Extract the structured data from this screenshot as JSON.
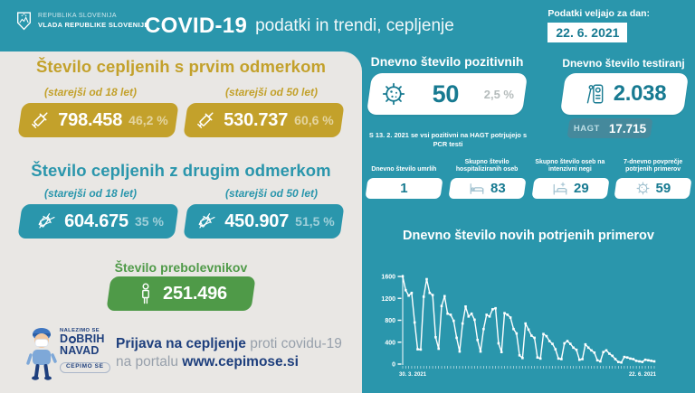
{
  "header": {
    "gov_line1": "REPUBLIKA SLOVENIJA",
    "gov_line2": "VLADA REPUBLIKE SLOVENIJE",
    "title_bold": "COVID-19",
    "title_rest": "podatki in trendi, cepljenje",
    "date_label": "Podatki veljajo za dan:",
    "date_value": "22. 6. 2021"
  },
  "left": {
    "first_dose": {
      "title": "Število cepljenih s prvim odmerkom",
      "groups": [
        {
          "label": "(starejši od 18 let)",
          "value": "798.458",
          "percent": "46,2 %"
        },
        {
          "label": "(starejši od 50 let)",
          "value": "530.737",
          "percent": "60,6 %"
        }
      ]
    },
    "second_dose": {
      "title": "Število cepljenih z drugim odmerkom",
      "groups": [
        {
          "label": "(starejši od 18 let)",
          "value": "604.675",
          "percent": "35 %"
        },
        {
          "label": "(starejši od 50 let)",
          "value": "450.907",
          "percent": "51,5 %"
        }
      ]
    },
    "recovered": {
      "title": "Število prebolevnikov",
      "value": "251.496"
    },
    "campaign": {
      "logo_line1": "NALEZIMO SE",
      "logo_line2_a": "D",
      "logo_line2_b": "BRIH",
      "logo_line3": "NAVAD",
      "badge": "CEPIMO SE",
      "cta_bold1": "Prijava na cepljenje",
      "cta_light1": "proti covidu-19",
      "cta_light2": "na portalu",
      "cta_link": "www.cepimose.si"
    }
  },
  "right": {
    "positives": {
      "title": "Dnevno število pozitivnih",
      "value": "50",
      "percent": "2,5 %",
      "note": "S 13. 2. 2021 se vsi pozitivni na HAGT potrjujejo s PCR testi"
    },
    "tests": {
      "title": "Dnevno število testiranj",
      "value": "2.038",
      "hagt_label": "HAGT",
      "hagt_value": "17.715"
    },
    "stats": [
      {
        "label": "Dnevno število umrlih",
        "value": "1",
        "icon": "none"
      },
      {
        "label": "Skupno število hospitaliziranih oseb",
        "value": "83",
        "icon": "bed-icon"
      },
      {
        "label": "Skupno število oseb na intenzivni negi",
        "value": "29",
        "icon": "bed-cross-icon"
      },
      {
        "label": "7-dnevno povprečje potrjenih primerov",
        "value": "59",
        "icon": "virus-icon"
      }
    ]
  },
  "chart_data": {
    "type": "line",
    "title": "Dnevno število novih potrjenih primerov",
    "xlabel": "",
    "ylabel": "",
    "x_start_label": "30. 3. 2021",
    "x_end_label": "22. 6. 2021",
    "y_ticks": [
      0,
      400,
      800,
      1200,
      1600
    ],
    "ylim": [
      0,
      1600
    ],
    "grid": false,
    "legend": "none",
    "series_name": "Dnevno število novih potrjenih primerov",
    "values": [
      1600,
      1350,
      1250,
      1300,
      760,
      270,
      265,
      1230,
      1550,
      1300,
      1260,
      490,
      280,
      1060,
      1240,
      920,
      900,
      790,
      480,
      230,
      740,
      1050,
      870,
      920,
      810,
      440,
      230,
      640,
      900,
      870,
      1000,
      1020,
      380,
      220,
      930,
      900,
      850,
      640,
      560,
      160,
      110,
      740,
      630,
      520,
      480,
      120,
      100,
      550,
      510,
      420,
      370,
      270,
      100,
      90,
      380,
      420,
      370,
      300,
      260,
      80,
      90,
      360,
      300,
      250,
      210,
      70,
      50,
      220,
      250,
      190,
      150,
      90,
      40,
      30,
      130,
      120,
      100,
      90,
      60,
      50,
      40,
      80,
      70,
      60,
      50
    ]
  },
  "colors": {
    "teal_bg": "#2a96ac",
    "teal_value": "#177a91",
    "panel_gray": "#e9e7e4",
    "gold": "#c3a12b",
    "green": "#4f9a48",
    "dark_blue": "#1e3f7d",
    "hagt_box": "#45899c",
    "chart_line": "#ffffff"
  },
  "icons": [
    "coat-of-arms-icon",
    "syringe-icon",
    "double-syringe-icon",
    "person-icon",
    "virus-icon",
    "test-cassette-icon",
    "bed-icon",
    "bed-cross-icon",
    "mascot-icon",
    "virus-o-icon"
  ]
}
